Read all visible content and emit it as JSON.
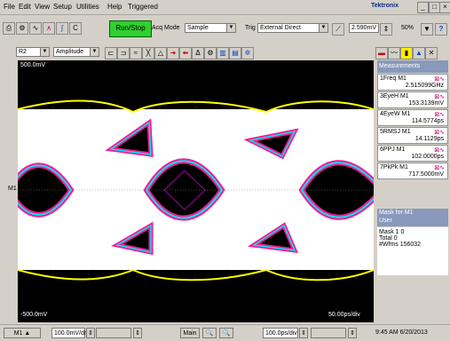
{
  "menu": [
    "File",
    "Edit",
    "View",
    "Setup",
    "Utilities",
    "Help",
    "Triggered"
  ],
  "brand": "Tektronix",
  "window_buttons": [
    "_",
    "□",
    "×"
  ],
  "toolbar": {
    "run_stop": "Run/Stop",
    "acq_mode_label": "Acq Mode",
    "acq_mode_value": "Sample",
    "trig_label": "Trig",
    "trig_value": "External Direct",
    "trig_level": "2.590mV",
    "zoom": "50%",
    "help": "?"
  },
  "toolbar2": {
    "source": "R2",
    "mode": "Amplitude"
  },
  "scope": {
    "top_label": "500.0mV",
    "bottom_label": "-500.0mV",
    "right_label": "50.00ps/div",
    "channel_marker": "M1"
  },
  "measurements": {
    "title": "Measurements",
    "items": [
      {
        "label": "1Freq  M1",
        "value": "2.515099GHz"
      },
      {
        "label": "3EyeH  M1",
        "value": "153.3139mV"
      },
      {
        "label": "4EyeW  M1",
        "value": "114.5774ps"
      },
      {
        "label": "5RMSJ  M1",
        "value": "14.1129ps"
      },
      {
        "label": "6PPJ  M1",
        "value": "102.0000ps"
      },
      {
        "label": "7PkPk  M1",
        "value": "717.5000mV"
      }
    ]
  },
  "mask": {
    "title": "Mask for  M1",
    "subtitle": "User",
    "mask1": "Mask 1   0",
    "total": "Total    0",
    "wfms": "#Wfms   156032"
  },
  "bottom": {
    "channel": "M1",
    "scale": "100.0mV/div",
    "main": "Main",
    "timebase": "100.0ps/div",
    "timestamp": "9:45 AM 6/20/2013"
  },
  "colors": {
    "trace_outer": "#ff1a8c",
    "trace_mid": "#ffff00",
    "trace_inner": "#00e0ff",
    "eye_fill": "#ffffff",
    "background": "#000000"
  }
}
